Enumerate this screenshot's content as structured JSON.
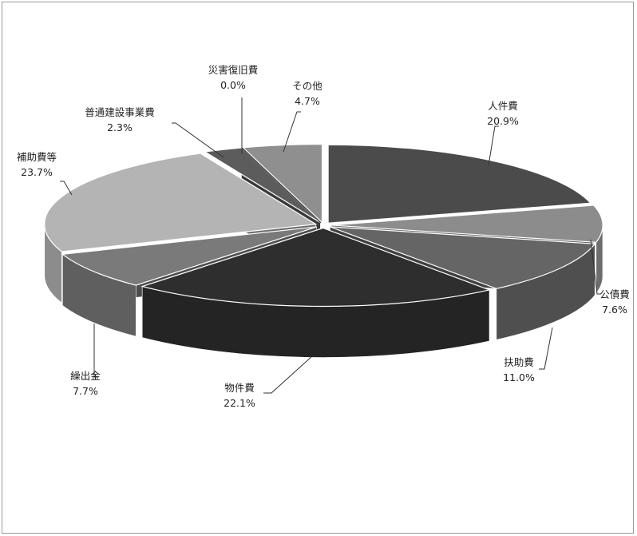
{
  "chart_data": {
    "type": "pie",
    "title": "",
    "categories": [
      "人件費",
      "公債費",
      "扶助費",
      "物件費",
      "繰出金",
      "補助費等",
      "普通建設事業費",
      "災害復旧費",
      "その他"
    ],
    "values": [
      20.9,
      7.6,
      11.0,
      22.1,
      7.7,
      23.7,
      2.3,
      0.0,
      4.7
    ],
    "value_labels": [
      "20.9%",
      "7.6%",
      "11.0%",
      "22.1%",
      "7.7%",
      "23.7%",
      "2.3%",
      "0.0%",
      "4.7%"
    ],
    "style": "3d-exploded",
    "legend": "none",
    "colors": {
      "人件費": "#4b4b4b",
      "公債費": "#8c8c8c",
      "扶助費": "#656565",
      "物件費": "#2e2e2e",
      "繰出金": "#7a7a7a",
      "補助費等": "#b4b4b4",
      "普通建設事業費": "#5c5c5c",
      "災害復旧費": "#444444",
      "その他": "#8f8f8f"
    }
  }
}
